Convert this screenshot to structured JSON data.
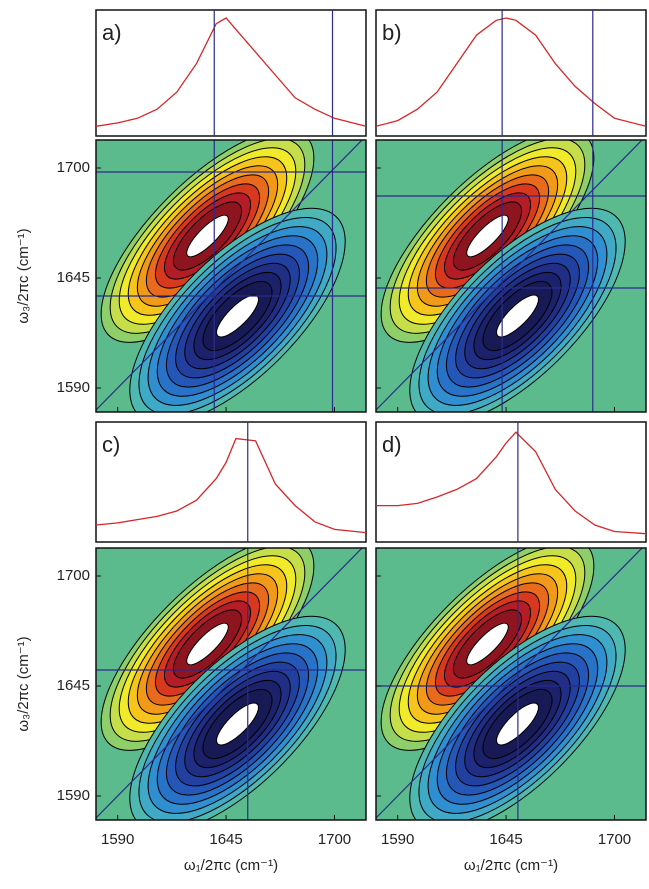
{
  "chart_data": {
    "type": "contour",
    "xlabel": "ω₁/2πc (cm⁻¹)",
    "ylabel": "ω₃/2πc (cm⁻¹)",
    "xlim": [
      1579,
      1716
    ],
    "ylim": [
      1578,
      1714
    ],
    "xticks": [
      1590,
      1645,
      1700
    ],
    "yticks": [
      1590,
      1645,
      1700
    ],
    "spectrum_x": [
      1579,
      1590,
      1600,
      1610,
      1620,
      1630,
      1640,
      1645,
      1650,
      1660,
      1670,
      1680,
      1690,
      1700,
      1716
    ],
    "spectrum_ylim": [
      0,
      1
    ],
    "spectrum_color": "#d62728",
    "line_color": "#2b2b8c",
    "background_color": "#5cbb8c",
    "panels": [
      {
        "label": "a)",
        "cross_x": [
          1639,
          1699
        ],
        "cross_y": [
          1698,
          1636
        ],
        "spectrum": [
          0.05,
          0.08,
          0.12,
          0.2,
          0.35,
          0.6,
          0.95,
          1.0,
          0.9,
          0.7,
          0.5,
          0.3,
          0.2,
          0.12,
          0.05
        ]
      },
      {
        "label": "b)",
        "cross_x": [
          1643,
          1689
        ],
        "cross_y": [
          1686,
          1640
        ],
        "spectrum": [
          0.05,
          0.1,
          0.2,
          0.35,
          0.6,
          0.85,
          0.98,
          1.0,
          0.98,
          0.85,
          0.6,
          0.4,
          0.25,
          0.12,
          0.05
        ]
      },
      {
        "label": "c)",
        "cross_x": [
          1656
        ],
        "cross_y": [
          1653
        ],
        "spectrum": [
          0.12,
          0.14,
          0.17,
          0.2,
          0.25,
          0.35,
          0.55,
          0.7,
          0.92,
          0.9,
          0.5,
          0.3,
          0.15,
          0.08,
          0.05
        ]
      },
      {
        "label": "d)",
        "cross_x": [
          1651
        ],
        "cross_y": [
          1645
        ],
        "spectrum": [
          0.3,
          0.3,
          0.32,
          0.38,
          0.45,
          0.55,
          0.75,
          0.88,
          0.98,
          0.8,
          0.45,
          0.25,
          0.12,
          0.06,
          0.04
        ]
      }
    ]
  }
}
